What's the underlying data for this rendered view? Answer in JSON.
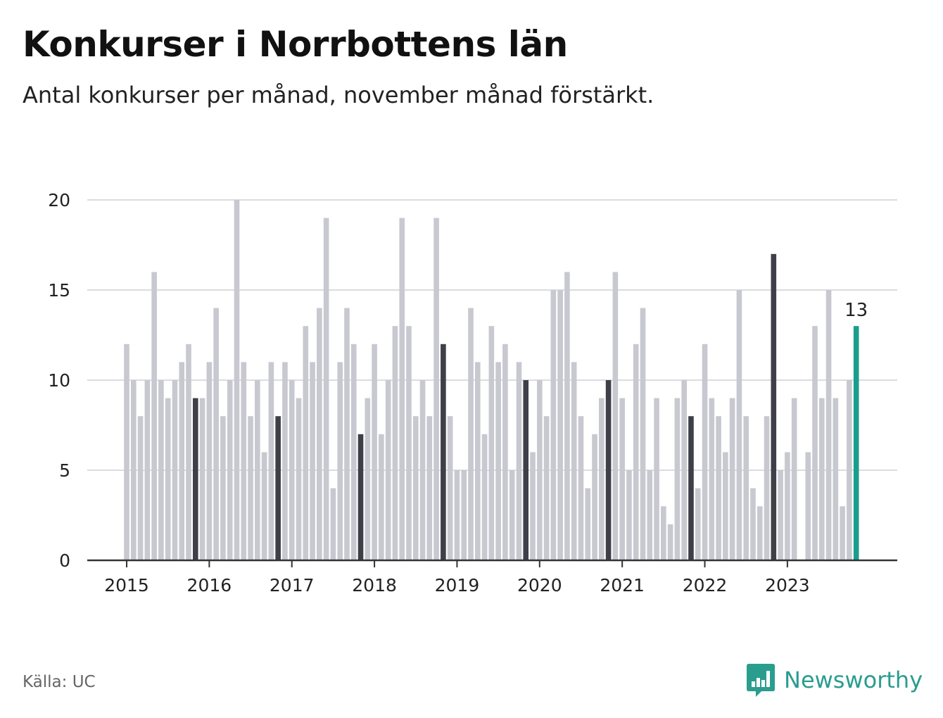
{
  "title": "Konkurser i Norrbottens län",
  "subtitle": "Antal konkurser per månad, november månad förstärkt.",
  "footer": {
    "source": "Källa: UC",
    "brand": "Newsworthy",
    "brand_icon": "bar-chart-speech-bubble-icon"
  },
  "colors": {
    "bar": "#c8c8d0",
    "highlight": "#3f3f4a",
    "current": "#1a9e8c",
    "grid": "#dcdce0",
    "axis": "#333333"
  },
  "chart_data": {
    "type": "bar",
    "ylim": [
      0,
      20
    ],
    "yticks": [
      "0",
      "5",
      "10",
      "15",
      "20"
    ],
    "xtick_labels": [
      "2015",
      "2016",
      "2017",
      "2018",
      "2019",
      "2020",
      "2021",
      "2022",
      "2023"
    ],
    "highlight_month": "november",
    "annotation": "13",
    "series": [
      {
        "year": "2015",
        "values": [
          12,
          10,
          8,
          10,
          16,
          10,
          9,
          10,
          11,
          12,
          9,
          9
        ]
      },
      {
        "year": "2016",
        "values": [
          11,
          14,
          8,
          10,
          20,
          11,
          8,
          10,
          6,
          11,
          8,
          11
        ]
      },
      {
        "year": "2017",
        "values": [
          10,
          9,
          13,
          11,
          14,
          19,
          4,
          11,
          14,
          12,
          7,
          9
        ]
      },
      {
        "year": "2018",
        "values": [
          12,
          7,
          10,
          13,
          19,
          13,
          8,
          10,
          8,
          19,
          12,
          8
        ]
      },
      {
        "year": "2019",
        "values": [
          5,
          5,
          14,
          11,
          7,
          13,
          11,
          12,
          5,
          11,
          10,
          6
        ]
      },
      {
        "year": "2020",
        "values": [
          10,
          8,
          15,
          15,
          16,
          11,
          8,
          4,
          7,
          9,
          10,
          16
        ]
      },
      {
        "year": "2021",
        "values": [
          9,
          5,
          12,
          14,
          5,
          9,
          3,
          2,
          9,
          10,
          8,
          4
        ]
      },
      {
        "year": "2022",
        "values": [
          12,
          9,
          8,
          6,
          9,
          15,
          8,
          4,
          3,
          8,
          17,
          5
        ]
      },
      {
        "year": "2023",
        "values": [
          6,
          9,
          0,
          6,
          13,
          9,
          15,
          9,
          3,
          10,
          13
        ]
      }
    ]
  }
}
